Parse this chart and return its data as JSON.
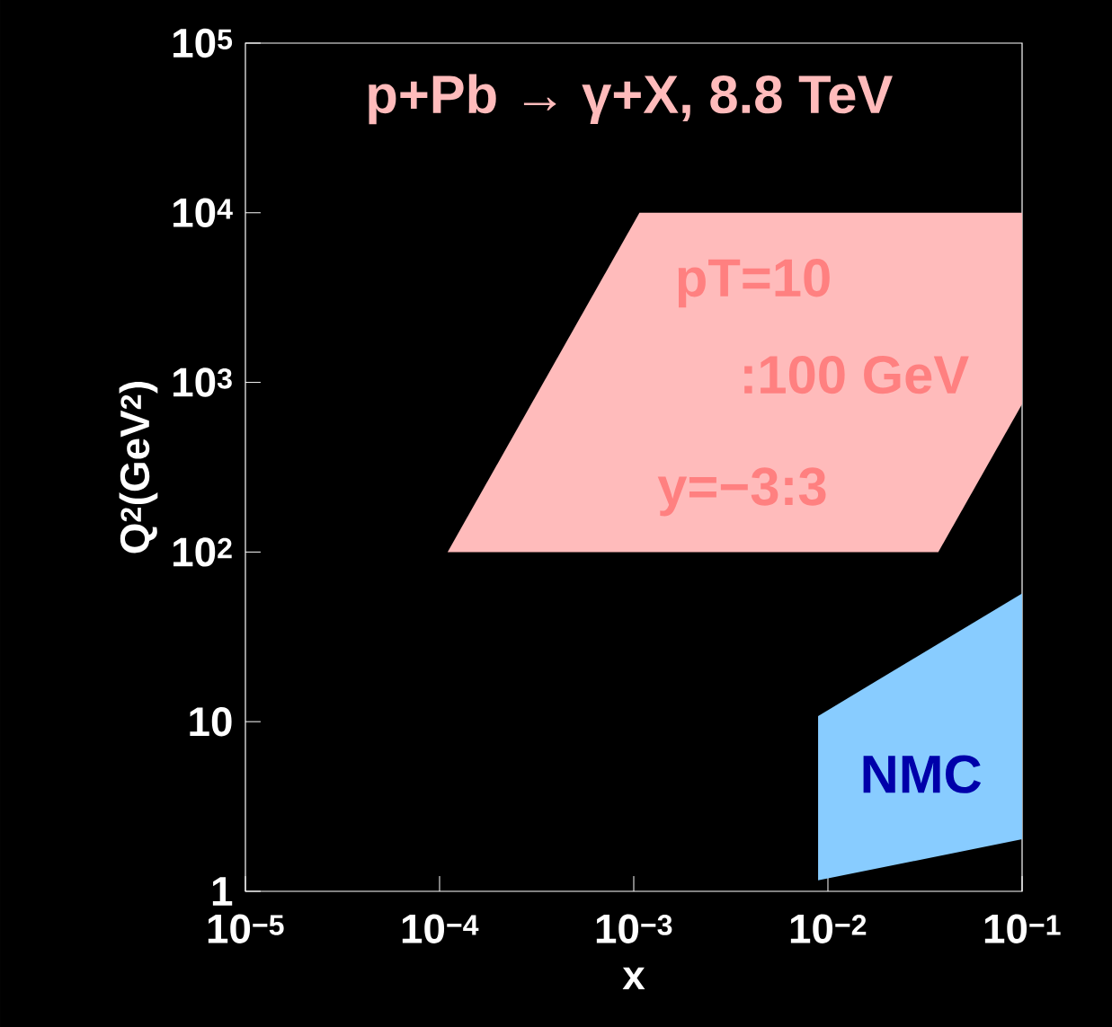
{
  "chart_data": {
    "type": "area",
    "xlabel": "x",
    "ylabel": "Q$^{2}$(GeV$^{2}$)",
    "annotations": [
      "p+Pb → γ+X, 8.8 TeV",
      "pT=10",
      ":100 GeV",
      "y=−3:3"
    ],
    "log": "xy",
    "xlim": [
      1e-05,
      0.1
    ],
    "ylim": [
      1,
      100000
    ],
    "xticks": [
      {
        "value": 1e-05,
        "label": "10$^{−5}$"
      },
      {
        "value": 0.0001,
        "label": "10$^{−4}$"
      },
      {
        "value": 0.001,
        "label": "10$^{−3}$"
      },
      {
        "value": 0.01,
        "label": "10$^{−2}$"
      },
      {
        "value": 0.1,
        "label": "10$^{−1}$"
      }
    ],
    "yticks": [
      1,
      10,
      {
        "value": 100,
        "label": "10$^{2}$"
      },
      {
        "value": 1000,
        "label": "10$^{3}$"
      },
      {
        "value": 10000,
        "label": "10$^{4}$"
      },
      {
        "value": 100000,
        "label": "10$^{5}$"
      }
    ],
    "series": [
      {
        "color": "#ffbbbb",
        "x": [
          0.00011,
          0.00107,
          0.1,
          0.1,
          0.037
        ],
        "values": [
          100,
          10000,
          10000,
          745,
          100
        ]
      },
      {
        "name": "NMC",
        "color": "#88ccff",
        "x": [
          0.0089,
          0.1,
          0.1,
          0.0089
        ],
        "values": [
          10.8,
          57,
          2.03,
          1.16
        ]
      }
    ]
  }
}
